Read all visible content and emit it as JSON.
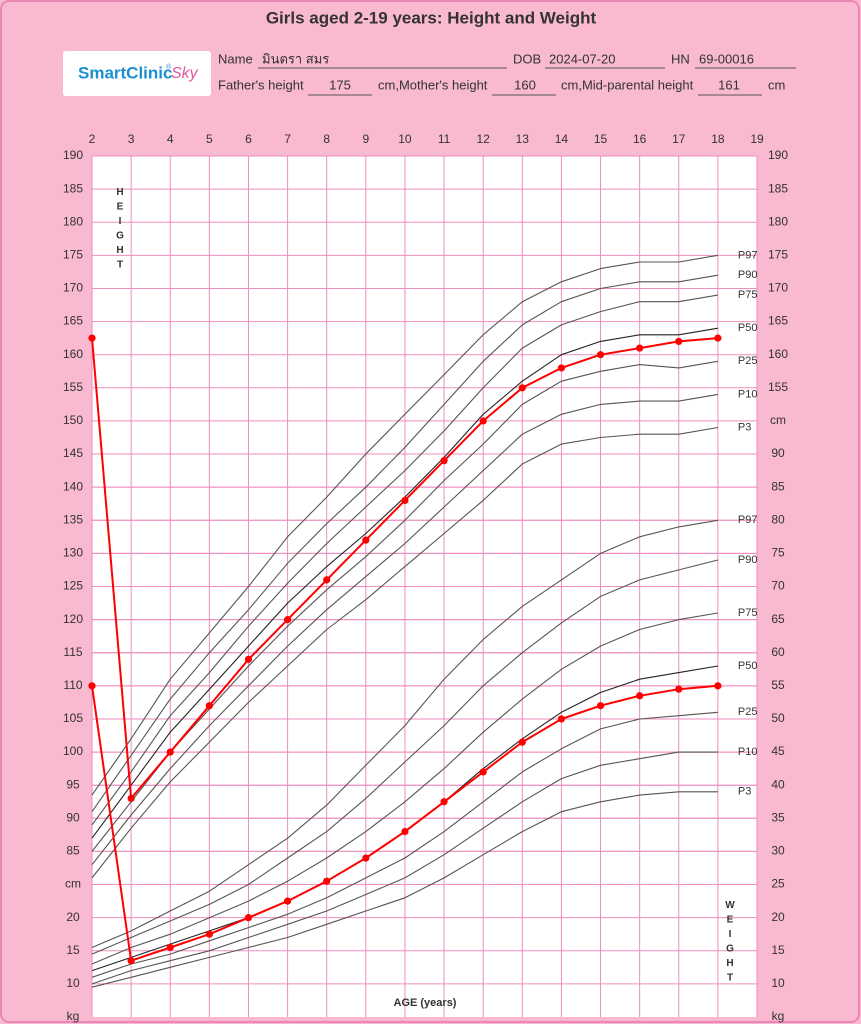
{
  "patient": {
    "logo": {
      "brand": "SmartClinic",
      "mark": "®",
      "suffix": "Sky"
    },
    "name_label": "Name",
    "name": "มินตรา สมร",
    "dob_label": "DOB",
    "dob": "2024-07-20",
    "hn_label": "HN",
    "hn": "69-00016",
    "father_label": "Father's height",
    "father": "175",
    "mother_label": "cm,Mother's height",
    "mother": "160",
    "mid_label": "cm,Mid-parental height",
    "mid": "161",
    "unit": "cm"
  },
  "chart_data": {
    "type": "line",
    "title": "Girls aged 2-19 years: Height and Weight",
    "x_label": "AGE (years)",
    "height_label": "HEIGHT",
    "weight_label": "WEIGHT",
    "y_label": "cm",
    "y2_label": "kg",
    "xlim": [
      2,
      19
    ],
    "xticks": [
      2,
      3,
      4,
      5,
      6,
      7,
      8,
      9,
      10,
      11,
      12,
      13,
      14,
      15,
      16,
      17,
      18,
      19
    ],
    "ylim": [
      60,
      190
    ],
    "yticks": [
      85,
      90,
      95,
      100,
      105,
      110,
      115,
      120,
      125,
      130,
      135,
      140,
      145,
      150,
      155,
      160,
      165,
      170,
      175,
      180,
      185,
      190
    ],
    "yticks_right": [
      155,
      160,
      165,
      170,
      175,
      180,
      185,
      190
    ],
    "y2lim": [
      5,
      135
    ],
    "y2ticks": [
      10,
      15,
      20,
      25,
      30,
      35,
      40,
      45,
      50,
      55,
      60,
      65,
      70,
      75,
      80,
      85,
      90
    ],
    "y2ticks_left": [
      10,
      15,
      20
    ],
    "grid": true,
    "x": [
      2,
      3,
      4,
      5,
      6,
      7,
      8,
      9,
      10,
      11,
      12,
      13,
      14,
      15,
      16,
      17,
      18
    ],
    "series": [
      {
        "name": "P97",
        "color": "#555555",
        "values": [
          93.5,
          102,
          111,
          118,
          125,
          132.5,
          138.5,
          145,
          151,
          157,
          163,
          168,
          171,
          173,
          174,
          174,
          175
        ]
      },
      {
        "name": "P90",
        "color": "#555555",
        "values": [
          91,
          99.5,
          108,
          115,
          121.5,
          128.5,
          134.5,
          140,
          146,
          152.5,
          159,
          164.5,
          168,
          170,
          171,
          171,
          172
        ]
      },
      {
        "name": "P75",
        "color": "#555555",
        "values": [
          89,
          97,
          105.5,
          112,
          119,
          125.5,
          131.5,
          137,
          142.5,
          148.5,
          155,
          161,
          164.5,
          166.5,
          168,
          168,
          169
        ]
      },
      {
        "name": "P50",
        "color": "#222222",
        "values": [
          87,
          95,
          103,
          109.5,
          116,
          122.5,
          128,
          133,
          138.5,
          144.5,
          151,
          156,
          160,
          162,
          163,
          163,
          164
        ]
      },
      {
        "name": "P25",
        "color": "#555555",
        "values": [
          85,
          92.5,
          100,
          106.5,
          113,
          119,
          124.5,
          129.5,
          135,
          141,
          146.5,
          152.5,
          156,
          157.5,
          158.5,
          158,
          159
        ]
      },
      {
        "name": "P10",
        "color": "#555555",
        "values": [
          83,
          90.5,
          97.5,
          104,
          110,
          116,
          121.5,
          126.5,
          131.5,
          137,
          142.5,
          148,
          151,
          152.5,
          153,
          153,
          154
        ]
      },
      {
        "name": "P3",
        "color": "#555555",
        "values": [
          81,
          88.5,
          95.5,
          101.5,
          107.5,
          113,
          118.5,
          123,
          128,
          133,
          138,
          143.5,
          146.5,
          147.5,
          148,
          148,
          149
        ]
      },
      {
        "color": "#ff0000",
        "markers": true,
        "values": [
          162.5,
          93,
          100,
          107,
          114,
          120,
          126,
          132,
          138,
          144,
          150,
          155,
          158,
          160,
          161,
          162,
          162.5
        ]
      },
      {
        "name": "P97",
        "color": "#555555",
        "axis": "y2",
        "values": [
          15.5,
          18,
          21,
          24,
          28,
          32,
          37,
          43,
          49,
          56,
          62,
          67,
          71,
          75,
          77.5,
          79,
          80
        ]
      },
      {
        "name": "P90",
        "color": "#555555",
        "axis": "y2",
        "values": [
          14.5,
          17,
          19.5,
          22,
          25,
          29,
          33,
          38,
          43.5,
          49,
          55,
          60,
          64.5,
          68.5,
          71,
          72.5,
          74
        ]
      },
      {
        "name": "P75",
        "color": "#555555",
        "axis": "y2",
        "values": [
          13,
          15.5,
          17.5,
          20,
          22.5,
          25.5,
          29,
          33,
          37.5,
          42.5,
          48,
          53,
          57.5,
          61,
          63.5,
          65,
          66
        ]
      },
      {
        "name": "P50",
        "color": "#222222",
        "axis": "y2",
        "values": [
          12,
          14,
          16,
          18,
          20,
          22.5,
          25.5,
          29,
          33,
          37.5,
          42.5,
          47,
          51,
          54,
          56,
          57,
          58
        ]
      },
      {
        "name": "P25",
        "color": "#555555",
        "axis": "y2",
        "values": [
          11,
          13,
          14.5,
          16.5,
          18.5,
          20.5,
          23,
          26,
          29,
          33,
          37.5,
          42,
          45.5,
          48.5,
          50,
          50.5,
          51
        ]
      },
      {
        "name": "P10",
        "color": "#555555",
        "axis": "y2",
        "values": [
          10,
          12,
          13.5,
          15,
          17,
          19,
          21,
          23.5,
          26,
          29.5,
          33.5,
          37.5,
          41,
          43,
          44,
          45,
          45
        ]
      },
      {
        "name": "P3",
        "color": "#555555",
        "axis": "y2",
        "values": [
          9.5,
          11,
          12.5,
          14,
          15.5,
          17,
          19,
          21,
          23,
          26,
          29.5,
          33,
          36,
          37.5,
          38.5,
          39,
          39
        ]
      },
      {
        "color": "#ff0000",
        "axis": "y2",
        "markers": true,
        "values": [
          55,
          13.5,
          15.5,
          17.5,
          20,
          22.5,
          25.5,
          29,
          33,
          37.5,
          42,
          46.5,
          50,
          52,
          53.5,
          54.5,
          55
        ]
      }
    ]
  }
}
